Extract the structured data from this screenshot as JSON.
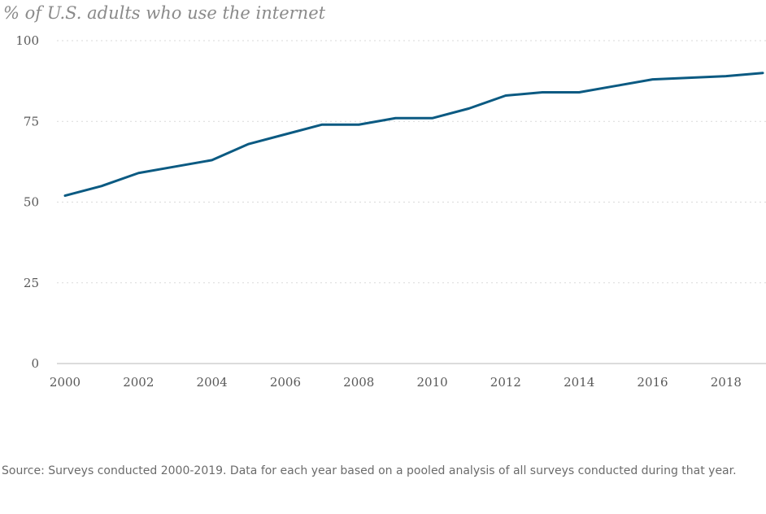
{
  "chart_data": {
    "type": "line",
    "title": "% of U.S. adults who use the internet",
    "xlabel": "",
    "ylabel": "",
    "x": [
      2000,
      2001,
      2002,
      2003,
      2004,
      2005,
      2006,
      2007,
      2008,
      2009,
      2010,
      2011,
      2012,
      2013,
      2014,
      2015,
      2016,
      2017,
      2018,
      2019
    ],
    "series": [
      {
        "values": [
          52,
          55,
          59,
          61,
          63,
          68,
          71,
          74,
          74,
          76,
          76,
          79,
          83,
          84,
          84,
          86,
          88,
          88.5,
          89,
          90
        ]
      }
    ],
    "xlim": [
      2000,
      2019
    ],
    "ylim": [
      0,
      100
    ],
    "x_ticks": [
      "2000",
      "2002",
      "2004",
      "2006",
      "2008",
      "2010",
      "2012",
      "2014",
      "2016",
      "2018"
    ],
    "y_ticks": [
      "0",
      "25",
      "50",
      "75",
      "100"
    ],
    "grid": "horizontal dotted",
    "legend": "none",
    "line_color": "#0b5a82",
    "grid_color": "#d9d9d9",
    "axis_color": "#c8c8c8"
  },
  "source_note": "Source: Surveys conducted 2000-2019. Data for each year based on a pooled analysis of all surveys conducted during that year."
}
